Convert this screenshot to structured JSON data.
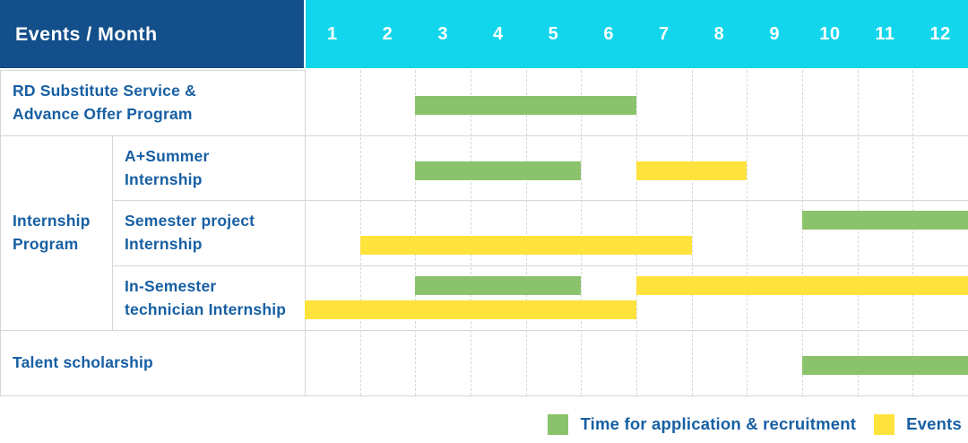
{
  "header": {
    "title": "Events / Month",
    "months": [
      "1",
      "2",
      "3",
      "4",
      "5",
      "6",
      "7",
      "8",
      "9",
      "10",
      "11",
      "12"
    ]
  },
  "colors": {
    "header_bg": "#134F8A",
    "month_strip_bg": "#12D6EC",
    "green": "#8AC36B",
    "yellow": "#FFE33D",
    "label_text": "#175FA3",
    "grid_line": "#D9D9D9",
    "border_line": "#D6D6D6"
  },
  "legend": {
    "items": [
      {
        "key": "application",
        "color_key": "green",
        "color": "#8AC36B",
        "label": "Time for application & recruitment"
      },
      {
        "key": "events",
        "color_key": "yellow",
        "color": "#FFE33D",
        "label": "Events"
      }
    ]
  },
  "chart_data": {
    "type": "gantt",
    "title": "Events / Month",
    "x_axis": {
      "label": "Month",
      "ticks": [
        "1",
        "2",
        "3",
        "4",
        "5",
        "6",
        "7",
        "8",
        "9",
        "10",
        "11",
        "12"
      ],
      "range": [
        1,
        12
      ]
    },
    "legend": [
      {
        "color_key": "green",
        "label": "Time for application & recruitment"
      },
      {
        "color_key": "yellow",
        "label": "Events"
      }
    ],
    "group": {
      "label": "Internship Program",
      "label_lines": [
        "Internship",
        "Program"
      ],
      "row_ids": [
        "a-plus-summer-internship",
        "semester-project-internship",
        "in-semester-technician-internship"
      ]
    },
    "rows": [
      {
        "id": "rd-substitute-advance-offer",
        "label": "RD Substitute Service & Advance Offer Program",
        "label_lines": [
          "RD Substitute Service &",
          "Advance Offer Program"
        ],
        "in_group": false,
        "bars": [
          {
            "series": "application",
            "color_key": "green",
            "start_month": 3,
            "end_month": 6,
            "lane": "center"
          }
        ]
      },
      {
        "id": "a-plus-summer-internship",
        "label": "A+Summer Internship",
        "label_lines": [
          "A+Summer",
          "Internship"
        ],
        "in_group": true,
        "bars": [
          {
            "series": "application",
            "color_key": "green",
            "start_month": 3,
            "end_month": 5,
            "lane": "center"
          },
          {
            "series": "events",
            "color_key": "yellow",
            "start_month": 7,
            "end_month": 8,
            "lane": "center"
          }
        ]
      },
      {
        "id": "semester-project-internship",
        "label": "Semester project Internship",
        "label_lines": [
          "Semester project",
          "Internship"
        ],
        "in_group": true,
        "bars": [
          {
            "series": "application",
            "color_key": "green",
            "start_month": 10,
            "end_month": 12,
            "lane": "top"
          },
          {
            "series": "events",
            "color_key": "yellow",
            "start_month": 2,
            "end_month": 7,
            "lane": "bottom"
          }
        ]
      },
      {
        "id": "in-semester-technician-internship",
        "label": "In-Semester technician Internship",
        "label_lines": [
          "In-Semester",
          "technician Internship"
        ],
        "in_group": true,
        "bars": [
          {
            "series": "application",
            "color_key": "green",
            "start_month": 3,
            "end_month": 5,
            "lane": "top"
          },
          {
            "series": "events",
            "color_key": "yellow",
            "start_month": 7,
            "end_month": 12,
            "lane": "top"
          },
          {
            "series": "events",
            "color_key": "yellow",
            "start_month": 1,
            "end_month": 6,
            "lane": "bottom"
          }
        ]
      },
      {
        "id": "talent-scholarship",
        "label": "Talent scholarship",
        "label_lines": [
          "Talent scholarship"
        ],
        "in_group": false,
        "bars": [
          {
            "series": "application",
            "color_key": "green",
            "start_month": 10,
            "end_month": 12,
            "lane": "center"
          }
        ]
      }
    ]
  }
}
